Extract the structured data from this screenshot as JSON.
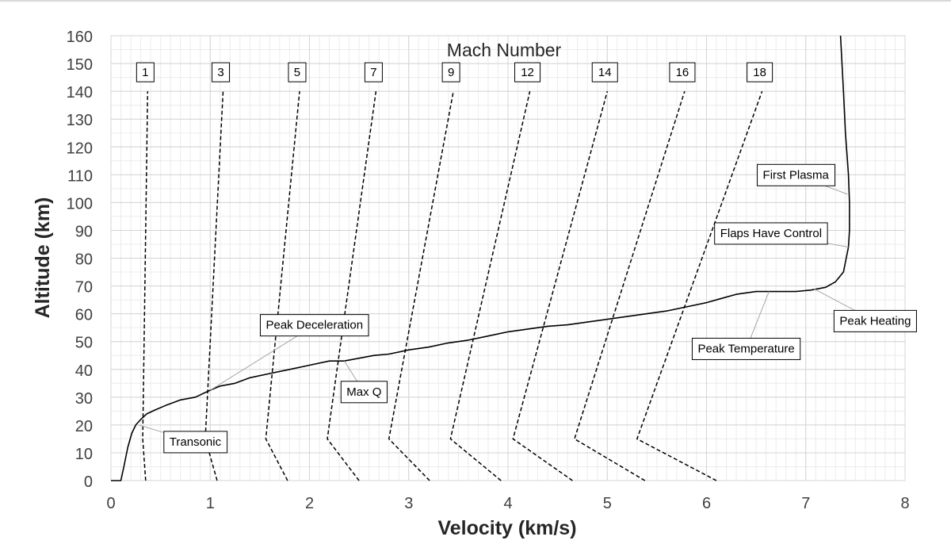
{
  "chart_data": {
    "type": "line",
    "title": "Mach Number",
    "xlabel": "Velocity (km/s)",
    "ylabel": "Altitude (km)",
    "xlim": [
      0,
      8
    ],
    "ylim": [
      0,
      160
    ],
    "x_ticks": [
      "0",
      "1",
      "2",
      "3",
      "4",
      "5",
      "6",
      "7",
      "8"
    ],
    "y_ticks": [
      "0",
      "10",
      "20",
      "30",
      "40",
      "50",
      "60",
      "70",
      "80",
      "90",
      "100",
      "110",
      "120",
      "130",
      "140",
      "150",
      "160"
    ],
    "grid": true,
    "trajectory": {
      "style": "solid",
      "color": "#000000",
      "points": [
        [
          0.0,
          0
        ],
        [
          0.1,
          0
        ],
        [
          0.13,
          5
        ],
        [
          0.17,
          12
        ],
        [
          0.21,
          17
        ],
        [
          0.25,
          20
        ],
        [
          0.3,
          22
        ],
        [
          0.36,
          24
        ],
        [
          0.45,
          25.5
        ],
        [
          0.55,
          27
        ],
        [
          0.7,
          29
        ],
        [
          0.85,
          30
        ],
        [
          1.0,
          32.5
        ],
        [
          1.1,
          34
        ],
        [
          1.25,
          35
        ],
        [
          1.4,
          37
        ],
        [
          1.6,
          38.5
        ],
        [
          1.8,
          40
        ],
        [
          2.0,
          41.5
        ],
        [
          2.2,
          43
        ],
        [
          2.35,
          43
        ],
        [
          2.5,
          44
        ],
        [
          2.65,
          45
        ],
        [
          2.8,
          45.5
        ],
        [
          3.0,
          47
        ],
        [
          3.2,
          48
        ],
        [
          3.4,
          49.5
        ],
        [
          3.6,
          50.5
        ],
        [
          3.8,
          52
        ],
        [
          4.0,
          53.5
        ],
        [
          4.2,
          54.5
        ],
        [
          4.4,
          55.5
        ],
        [
          4.6,
          56
        ],
        [
          4.8,
          57
        ],
        [
          5.0,
          58
        ],
        [
          5.2,
          59
        ],
        [
          5.4,
          60
        ],
        [
          5.6,
          61
        ],
        [
          5.8,
          62.5
        ],
        [
          6.0,
          64
        ],
        [
          6.15,
          65.5
        ],
        [
          6.3,
          67
        ],
        [
          6.5,
          68
        ],
        [
          6.7,
          68
        ],
        [
          6.9,
          68
        ],
        [
          7.05,
          68.5
        ],
        [
          7.2,
          69.5
        ],
        [
          7.3,
          71.5
        ],
        [
          7.38,
          75
        ],
        [
          7.43,
          84
        ],
        [
          7.44,
          90
        ],
        [
          7.44,
          100
        ],
        [
          7.43,
          110
        ],
        [
          7.4,
          125
        ],
        [
          7.38,
          140
        ],
        [
          7.35,
          160
        ]
      ]
    },
    "mach_series": [
      {
        "name": "1",
        "points": [
          [
            0.35,
            0
          ],
          [
            0.32,
            15
          ],
          [
            0.37,
            140
          ]
        ]
      },
      {
        "name": "3",
        "points": [
          [
            1.07,
            0
          ],
          [
            0.95,
            15
          ],
          [
            1.13,
            140
          ]
        ]
      },
      {
        "name": "5",
        "points": [
          [
            1.78,
            0
          ],
          [
            1.56,
            15
          ],
          [
            1.9,
            140
          ]
        ]
      },
      {
        "name": "7",
        "points": [
          [
            2.5,
            0
          ],
          [
            2.18,
            15
          ],
          [
            2.67,
            140
          ]
        ]
      },
      {
        "name": "9",
        "points": [
          [
            3.21,
            0
          ],
          [
            2.8,
            15
          ],
          [
            3.45,
            140
          ]
        ]
      },
      {
        "name": "12",
        "points": [
          [
            3.93,
            0
          ],
          [
            3.42,
            15
          ],
          [
            4.22,
            140
          ]
        ]
      },
      {
        "name": "14",
        "points": [
          [
            4.65,
            0
          ],
          [
            4.05,
            15
          ],
          [
            5.0,
            140
          ]
        ]
      },
      {
        "name": "16",
        "points": [
          [
            5.38,
            0
          ],
          [
            4.67,
            15
          ],
          [
            5.78,
            140
          ]
        ]
      },
      {
        "name": "18",
        "points": [
          [
            6.1,
            0
          ],
          [
            5.3,
            15
          ],
          [
            6.56,
            140
          ]
        ]
      }
    ],
    "annotations": [
      {
        "text": "Transonic",
        "target": [
          0.28,
          20
        ],
        "label_at": [
          0.85,
          14
        ]
      },
      {
        "text": "Peak Deceleration",
        "target": [
          1.0,
          32.5
        ],
        "label_at": [
          2.05,
          56
        ]
      },
      {
        "text": "Max Q",
        "target": [
          2.35,
          43
        ],
        "label_at": [
          2.55,
          32
        ]
      },
      {
        "text": "First Plasma",
        "target": [
          7.42,
          103
        ],
        "label_at": [
          6.9,
          110
        ]
      },
      {
        "text": "Flaps Have Control",
        "target": [
          7.43,
          84
        ],
        "label_at": [
          6.65,
          89
        ]
      },
      {
        "text": "Peak Heating",
        "target": [
          7.08,
          69
        ],
        "label_at": [
          7.7,
          57.5
        ]
      },
      {
        "text": "Peak Temperature",
        "target": [
          6.63,
          68
        ],
        "label_at": [
          6.4,
          47.5
        ]
      }
    ]
  }
}
